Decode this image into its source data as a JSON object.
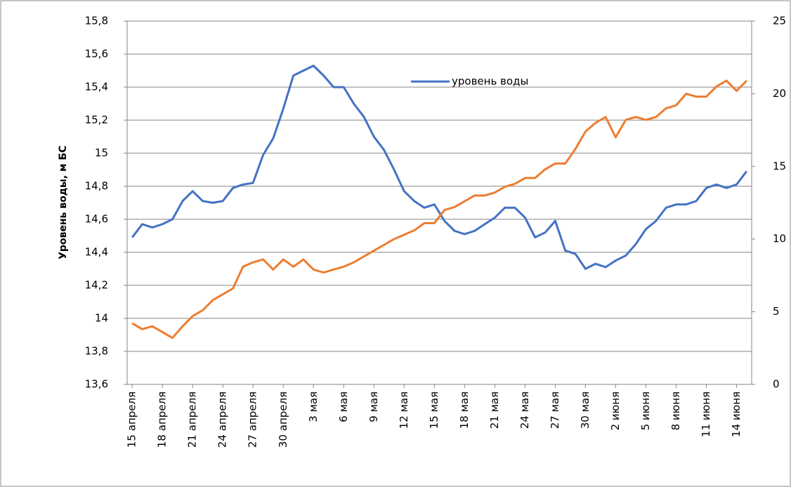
{
  "chart_data": {
    "type": "line",
    "y_axis_label": "Уровень воды, м БС",
    "categories": [
      "15 апреля",
      null,
      null,
      "18 апреля",
      null,
      null,
      "21 апреля",
      null,
      null,
      "24 апреля",
      null,
      null,
      "27 апреля",
      null,
      null,
      "30 апреля",
      null,
      null,
      "3 мая",
      null,
      null,
      "6 мая",
      null,
      null,
      "9 мая",
      null,
      null,
      "12 мая",
      null,
      null,
      "15 мая",
      null,
      null,
      "18 мая",
      null,
      null,
      "21 мая",
      null,
      null,
      "24 мая",
      null,
      null,
      "27 мая",
      null,
      null,
      "30 мая",
      null,
      null,
      "2 июня",
      null,
      null,
      "5 июня",
      null,
      null,
      "8 июня",
      null,
      null,
      "11 июня",
      null,
      null,
      "14 июня",
      null
    ],
    "series": [
      {
        "name": "уровень воды",
        "color": "#4472c4",
        "axis": "y",
        "values": [
          14.49,
          14.57,
          14.55,
          14.57,
          14.6,
          14.71,
          14.77,
          14.71,
          14.7,
          14.71,
          14.79,
          14.81,
          14.82,
          14.99,
          15.09,
          15.27,
          15.47,
          15.5,
          15.53,
          15.47,
          15.4,
          15.4,
          15.3,
          15.22,
          15.1,
          15.02,
          14.9,
          14.77,
          14.71,
          14.67,
          14.69,
          14.59,
          14.53,
          14.51,
          14.53,
          14.57,
          14.61,
          14.67,
          14.67,
          14.61,
          14.49,
          14.52,
          14.59,
          14.41,
          14.39,
          14.3,
          14.33,
          14.31,
          14.35,
          14.38,
          14.45,
          14.54,
          14.59,
          14.67,
          14.69,
          14.69,
          14.71,
          14.79,
          14.81,
          14.79,
          14.81,
          14.89
        ]
      },
      {
        "color": "#ed7d31",
        "axis": "y2",
        "values": [
          4.2,
          3.8,
          4.0,
          3.6,
          3.2,
          4.0,
          4.7,
          5.1,
          5.8,
          6.2,
          6.6,
          8.1,
          8.4,
          8.6,
          7.9,
          8.6,
          8.1,
          8.6,
          7.9,
          7.7,
          7.9,
          8.1,
          8.4,
          8.8,
          9.2,
          9.6,
          10.0,
          10.3,
          10.6,
          11.1,
          11.1,
          12.0,
          12.2,
          12.6,
          13.0,
          13.0,
          13.2,
          13.6,
          13.8,
          14.2,
          14.2,
          14.8,
          15.2,
          15.2,
          16.2,
          17.4,
          18.0,
          18.4,
          17.0,
          18.2,
          18.4,
          18.2,
          18.4,
          19.0,
          19.2,
          20.0,
          19.8,
          19.8,
          20.5,
          20.9,
          20.2,
          20.9
        ]
      }
    ],
    "ylim": [
      13.6,
      15.8
    ],
    "yticks": [
      {
        "value": 13.6,
        "label": "13,6"
      },
      {
        "value": 13.8,
        "label": "13,8"
      },
      14,
      {
        "value": 14.2,
        "label": "14,2"
      },
      {
        "value": 14.4,
        "label": "14,4"
      },
      {
        "value": 14.6,
        "label": "14,6"
      },
      {
        "value": 14.8,
        "label": "14,8"
      },
      15,
      {
        "value": 15.2,
        "label": "15,2"
      },
      {
        "value": 15.4,
        "label": "15,4"
      },
      {
        "value": 15.6,
        "label": "15,6"
      },
      {
        "value": 15.8,
        "label": "15,8"
      }
    ],
    "y2lim": [
      0,
      25
    ],
    "y2ticks": [
      0,
      5,
      10,
      15,
      20,
      25
    ],
    "grid": true
  }
}
